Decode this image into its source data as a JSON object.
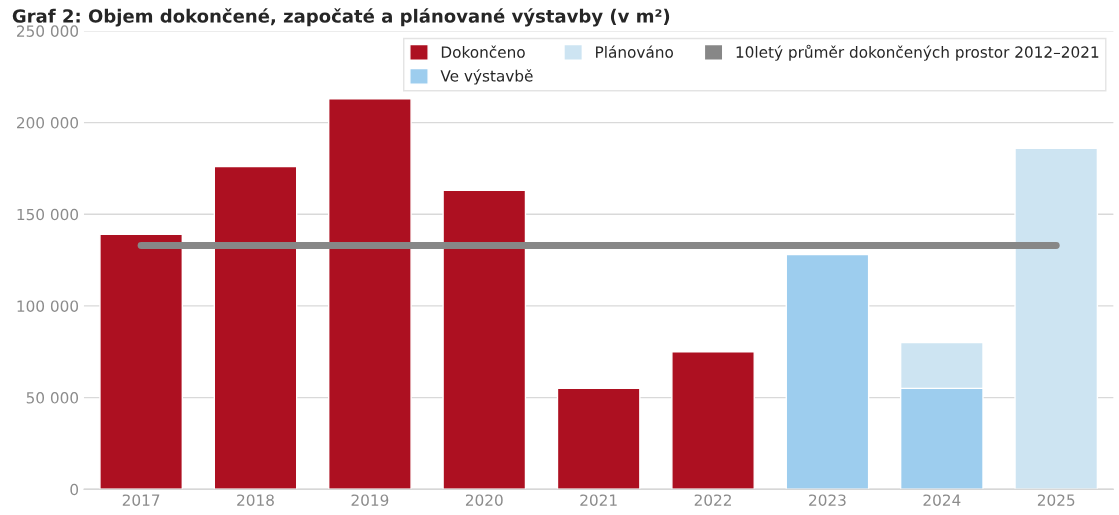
{
  "chart_data": {
    "type": "bar",
    "title": "Graf 2: Objem dokončené, započaté a plánované výstavby (v m²)",
    "stacked": true,
    "categories": [
      "2017",
      "2018",
      "2019",
      "2020",
      "2021",
      "2022",
      "2023",
      "2024",
      "2025"
    ],
    "series": [
      {
        "name": "Dokončeno",
        "color": "#ad1021",
        "values": [
          139000,
          176000,
          213000,
          163000,
          55000,
          75000,
          null,
          null,
          null
        ]
      },
      {
        "name": "Ve výstavbě",
        "color": "#9dcdee",
        "values": [
          null,
          null,
          null,
          null,
          null,
          null,
          128000,
          55000,
          null
        ]
      },
      {
        "name": "Plánováno",
        "color": "#cde4f2",
        "values": [
          null,
          null,
          null,
          null,
          null,
          null,
          null,
          25000,
          186000
        ]
      },
      {
        "name": "10letý průměr dokončených prostor 2012–2021",
        "type": "line",
        "color": "#878787",
        "values": [
          133000,
          133000,
          133000,
          133000,
          133000,
          133000,
          133000,
          133000,
          133000
        ]
      }
    ],
    "ylim": [
      0,
      250000
    ],
    "yticks": [
      {
        "value": 0,
        "label": "0"
      },
      {
        "value": 50000,
        "label": "50 000"
      },
      {
        "value": 100000,
        "label": "100 000"
      },
      {
        "value": 150000,
        "label": "150 000"
      },
      {
        "value": 200000,
        "label": "200 000"
      },
      {
        "value": 250000,
        "label": "250 000"
      }
    ],
    "grid": "y",
    "legend": "top right"
  }
}
